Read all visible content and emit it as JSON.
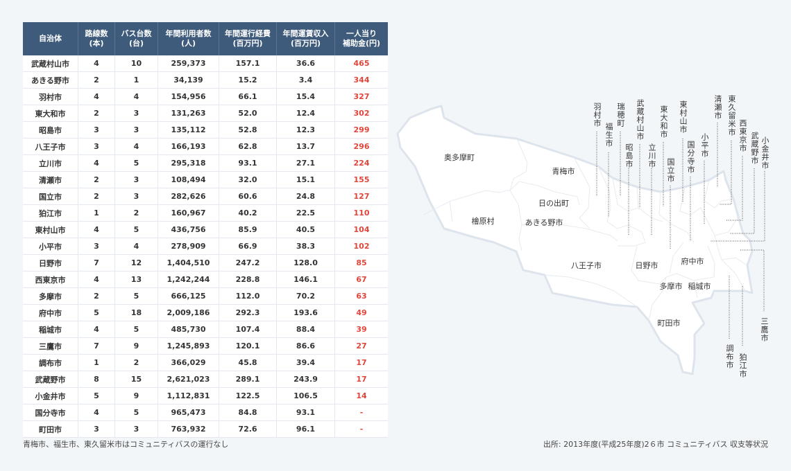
{
  "table": {
    "headers": [
      "自治体",
      "路線数\n(本)",
      "バス台数\n(台)",
      "年間利用者数\n(人)",
      "年間運行経費\n(百万円)",
      "年間運賃収入\n(百万円)",
      "一人当り\n補助金(円)"
    ],
    "rows": [
      [
        "武蔵村山市",
        "4",
        "10",
        "259,373",
        "157.1",
        "36.6",
        "465"
      ],
      [
        "あきる野市",
        "2",
        "1",
        "34,139",
        "15.2",
        "3.4",
        "344"
      ],
      [
        "羽村市",
        "4",
        "4",
        "154,956",
        "66.1",
        "15.4",
        "327"
      ],
      [
        "東大和市",
        "2",
        "3",
        "131,263",
        "52.0",
        "12.4",
        "302"
      ],
      [
        "昭島市",
        "3",
        "3",
        "135,112",
        "52.8",
        "12.3",
        "299"
      ],
      [
        "八王子市",
        "3",
        "4",
        "166,193",
        "62.8",
        "13.7",
        "296"
      ],
      [
        "立川市",
        "4",
        "5",
        "295,318",
        "93.1",
        "27.1",
        "224"
      ],
      [
        "清瀬市",
        "2",
        "3",
        "108,494",
        "32.0",
        "15.1",
        "155"
      ],
      [
        "国立市",
        "2",
        "3",
        "282,626",
        "60.6",
        "24.8",
        "127"
      ],
      [
        "狛江市",
        "1",
        "2",
        "160,967",
        "40.2",
        "22.5",
        "110"
      ],
      [
        "東村山市",
        "4",
        "5",
        "436,756",
        "85.9",
        "40.5",
        "104"
      ],
      [
        "小平市",
        "3",
        "4",
        "278,909",
        "66.9",
        "38.3",
        "102"
      ],
      [
        "日野市",
        "7",
        "12",
        "1,404,510",
        "247.2",
        "128.0",
        "85"
      ],
      [
        "西東京市",
        "4",
        "13",
        "1,242,244",
        "228.8",
        "146.1",
        "67"
      ],
      [
        "多摩市",
        "2",
        "5",
        "666,125",
        "112.0",
        "70.2",
        "63"
      ],
      [
        "府中市",
        "5",
        "18",
        "2,009,186",
        "292.3",
        "193.6",
        "49"
      ],
      [
        "稲城市",
        "4",
        "5",
        "485,730",
        "107.4",
        "88.4",
        "39"
      ],
      [
        "三鷹市",
        "7",
        "9",
        "1,245,893",
        "120.1",
        "86.6",
        "27"
      ],
      [
        "調布市",
        "1",
        "2",
        "366,029",
        "45.8",
        "39.4",
        "17"
      ],
      [
        "武蔵野市",
        "8",
        "15",
        "2,621,023",
        "289.1",
        "243.9",
        "17"
      ],
      [
        "小金井市",
        "5",
        "9",
        "1,112,831",
        "122.5",
        "106.5",
        "14"
      ],
      [
        "国分寺市",
        "4",
        "5",
        "965,473",
        "84.8",
        "93.1",
        "-"
      ],
      [
        "町田市",
        "3",
        "3",
        "763,932",
        "72.6",
        "96.1",
        "-"
      ]
    ]
  },
  "colors": {
    "header_bg": "#3e5b7c",
    "subsidy_text": "#e0453a",
    "map_fill": "#ffffff",
    "map_border": "#dde4ec",
    "background": "#f3f6f9"
  },
  "map": {
    "area_labels": [
      "奥多摩町",
      "青梅市",
      "日の出町",
      "檜原村",
      "あきる野市",
      "八王子市",
      "日野市",
      "府中市",
      "多摩市",
      "稲城市",
      "町田市"
    ],
    "callout_labels": [
      "羽村市",
      "福生市",
      "瑞穂町",
      "武蔵村山市",
      "昭島市",
      "東大和市",
      "立川市",
      "東村山市",
      "国立市",
      "国分寺市",
      "小平市",
      "清瀬市",
      "東久留米市",
      "西東京市",
      "武蔵野市",
      "小金井市",
      "三鷹市",
      "調布市",
      "狛江市"
    ]
  },
  "footer": {
    "note": "青梅市、福生市、東久留米市はコミュニティバスの運行なし",
    "source": "出所: 2013年度(平成25年度)2６市 コミュニティバス 収支等状況"
  }
}
